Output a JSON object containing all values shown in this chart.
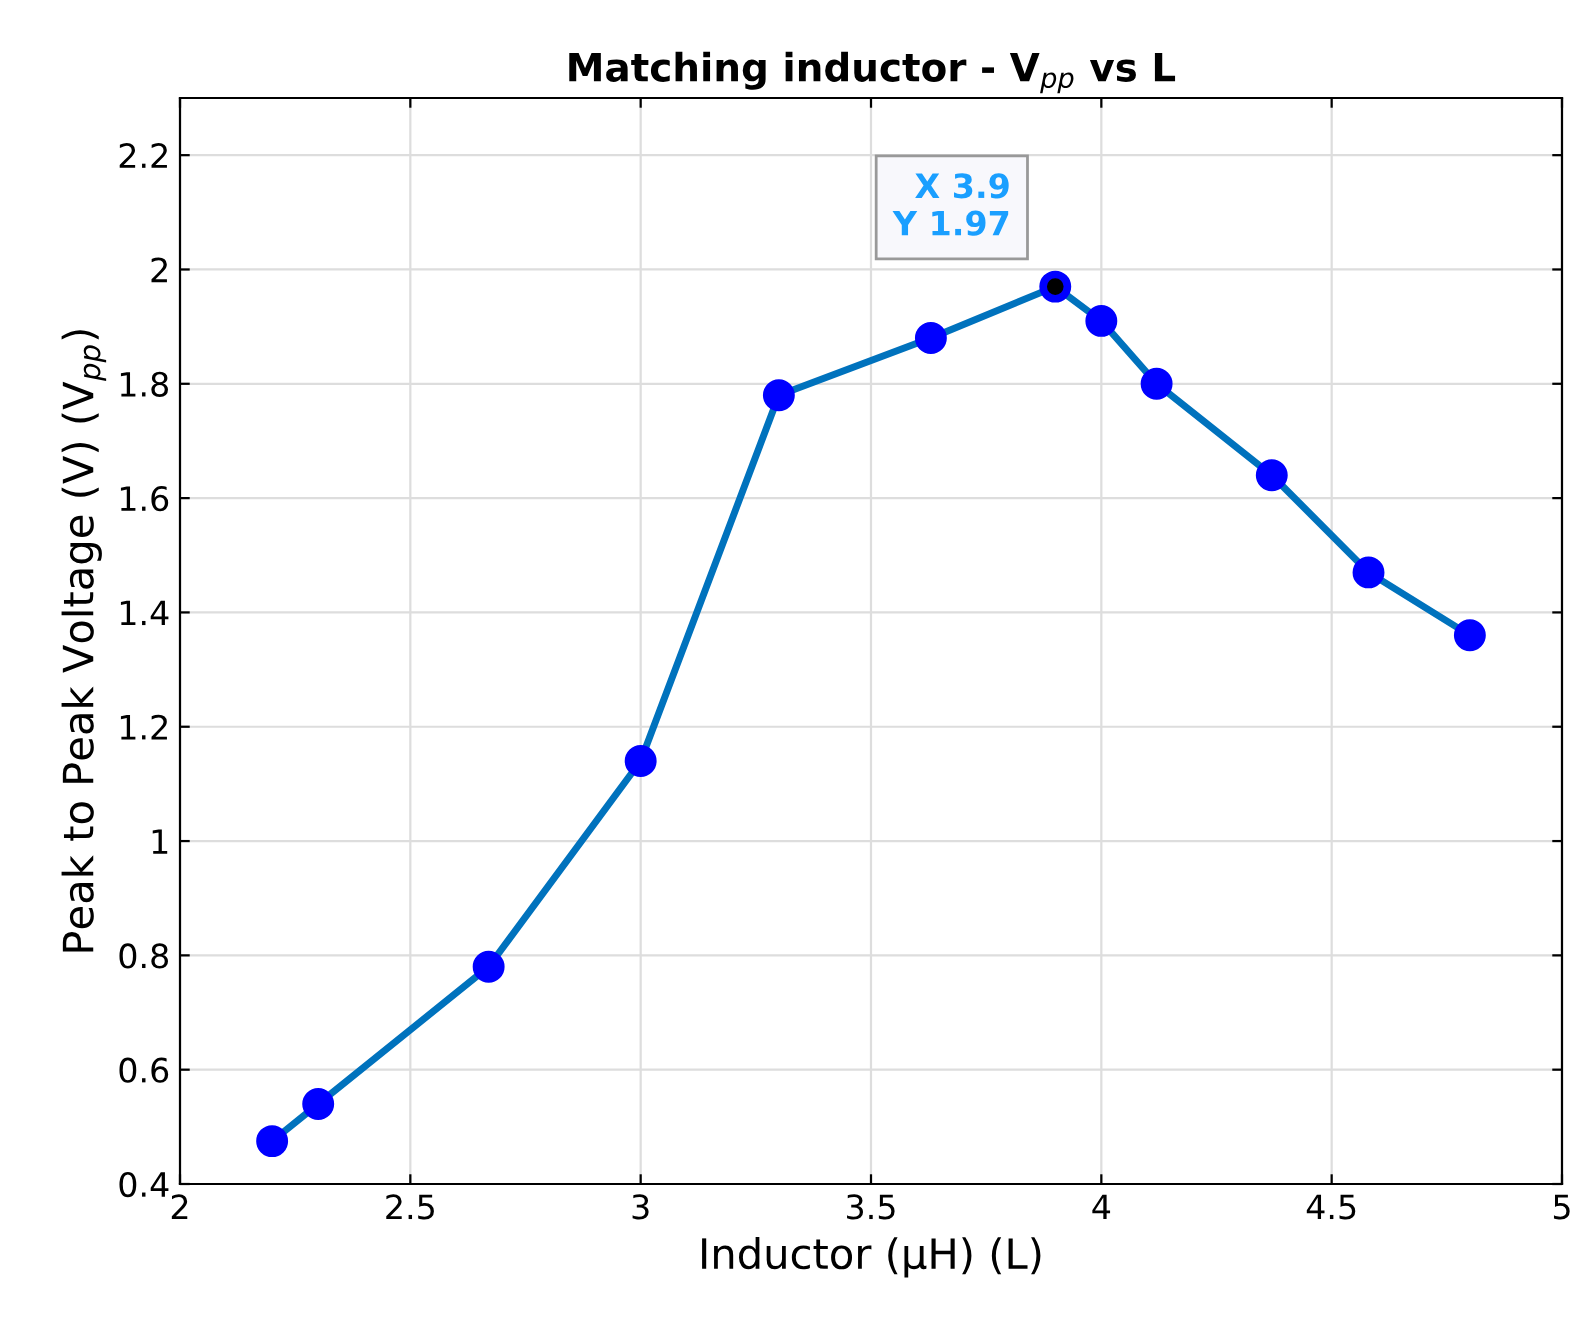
{
  "chart_data": {
    "type": "line",
    "title": "Matching inductor - V$_{pp}$ vs L",
    "xlabel": "Inductor (μH) (L)",
    "ylabel": "Peak to Peak Voltage (V) (V$_{pp}$)",
    "x": [
      2.2,
      2.3,
      2.67,
      3.0,
      3.3,
      3.63,
      3.9,
      4.0,
      4.12,
      4.37,
      4.58,
      4.8
    ],
    "series": [
      {
        "color": "#0072bd",
        "colors": [
          "#0000ff",
          "#0000ff",
          "#0000ff",
          "#0000ff",
          "#0000ff",
          "#0000ff",
          "#0000ff",
          "#0000ff",
          "#0000ff",
          "#0000ff",
          "#0000ff",
          "#0000ff"
        ],
        "values": [
          0.475,
          0.54,
          0.78,
          1.14,
          1.78,
          1.88,
          1.97,
          1.91,
          1.8,
          1.64,
          1.47,
          1.36
        ]
      }
    ],
    "annotations": [
      {
        "text": "X 3.9\nY 1.97",
        "x": 3.9,
        "y": 1.97
      }
    ],
    "xlim": [
      2,
      5
    ],
    "xticks": [
      2,
      2.5,
      3,
      3.5,
      4,
      4.5,
      5
    ],
    "ylim": [
      0.4,
      2.3
    ],
    "yticks": [
      0.4,
      0.6,
      0.8,
      1,
      1.2,
      1.4,
      1.6,
      1.8,
      2,
      2.2
    ],
    "grid": true,
    "marker": "circle",
    "line_style": "solid"
  }
}
